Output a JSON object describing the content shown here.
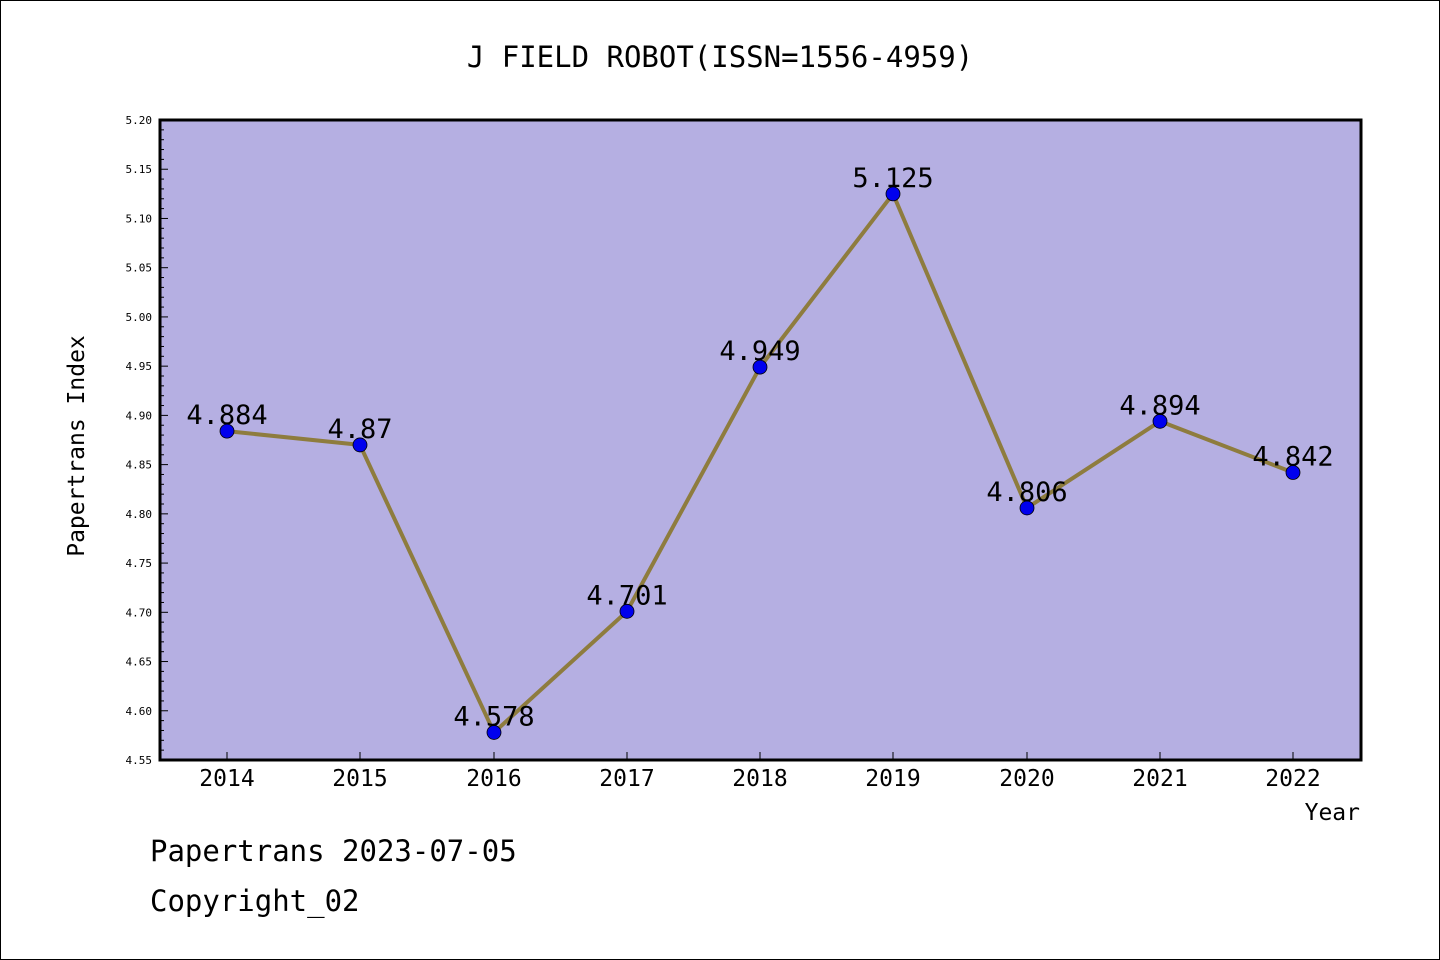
{
  "chart_data": {
    "type": "line",
    "title": "J FIELD ROBOT(ISSN=1556-4959)",
    "xlabel": "Year",
    "ylabel": "Papertrans Index",
    "categories": [
      "2014",
      "2015",
      "2016",
      "2017",
      "2018",
      "2019",
      "2020",
      "2021",
      "2022"
    ],
    "series": [
      {
        "values": [
          4.884,
          4.87,
          4.578,
          4.701,
          4.949,
          5.125,
          4.806,
          4.894,
          4.842
        ]
      }
    ],
    "data_labels": [
      "4.884",
      "4.87",
      "4.578",
      "4.701",
      "4.949",
      "5.125",
      "4.806",
      "4.894",
      "4.842"
    ],
    "ylim": [
      4.55,
      5.2
    ],
    "yticks": [
      "4.55",
      "4.60",
      "4.65",
      "4.70",
      "4.75",
      "4.80",
      "4.85",
      "4.90",
      "4.95",
      "5.00",
      "5.05",
      "5.10",
      "5.15",
      "5.20"
    ],
    "grid": false,
    "legend": "none",
    "colors": {
      "plot_background": "#b5afe2",
      "line": "#8e7c3e",
      "marker": "#0000ee"
    }
  },
  "footer": {
    "date_line": "Papertrans 2023-07-05",
    "copyright_line": "Copyright_02"
  }
}
